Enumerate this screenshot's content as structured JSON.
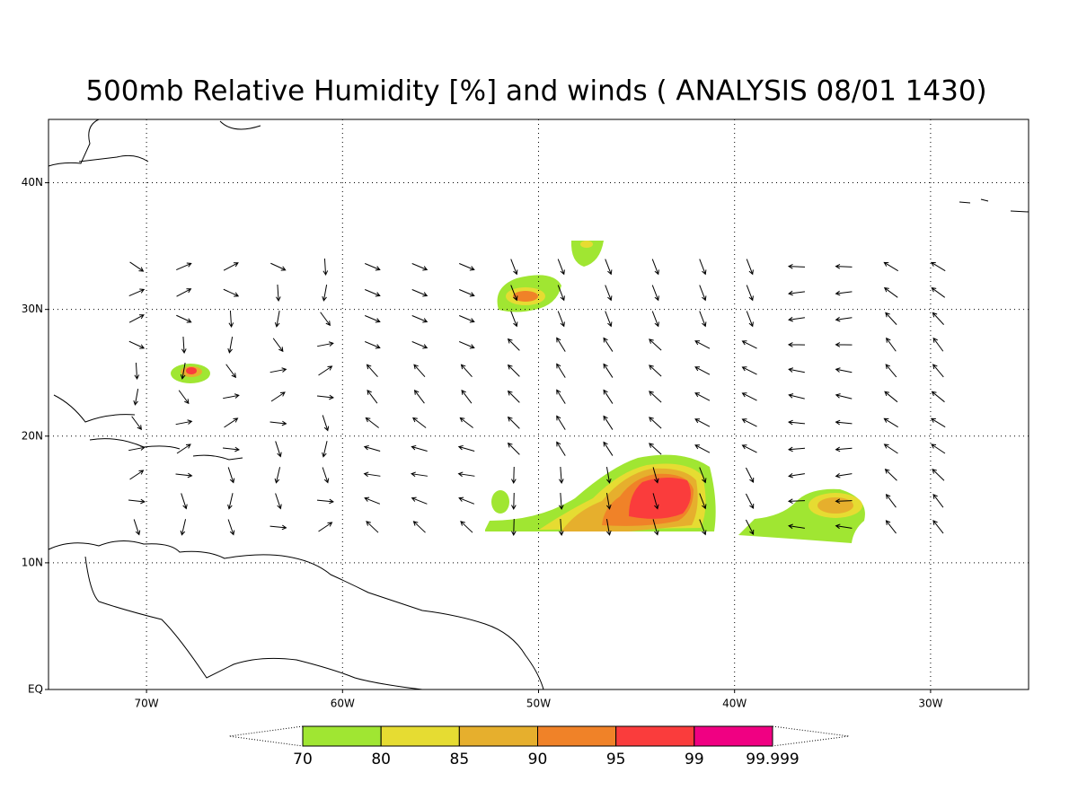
{
  "title": "500mb Relative Humidity [%] and winds ( ANALYSIS 08/01 1430)",
  "map": {
    "lonlim": [
      -75,
      -25
    ],
    "latlim": [
      0,
      45
    ],
    "lon_ticks": [
      {
        "value": -70,
        "label": "70W"
      },
      {
        "value": -60,
        "label": "60W"
      },
      {
        "value": -50,
        "label": "50W"
      },
      {
        "value": -40,
        "label": "40W"
      },
      {
        "value": -30,
        "label": "30W"
      }
    ],
    "lat_ticks": [
      {
        "value": 0,
        "label": "EQ"
      },
      {
        "value": 10,
        "label": "10N"
      },
      {
        "value": 20,
        "label": "20N"
      },
      {
        "value": 30,
        "label": "30N"
      },
      {
        "value": 40,
        "label": "40N"
      }
    ],
    "grid": true
  },
  "colorbar": {
    "levels": [
      70,
      80,
      85,
      90,
      95,
      99,
      99.999
    ],
    "colors": [
      "#a0e632",
      "#e6dc32",
      "#e6af2d",
      "#f08228",
      "#fa3c3c",
      "#f00082"
    ]
  }
}
